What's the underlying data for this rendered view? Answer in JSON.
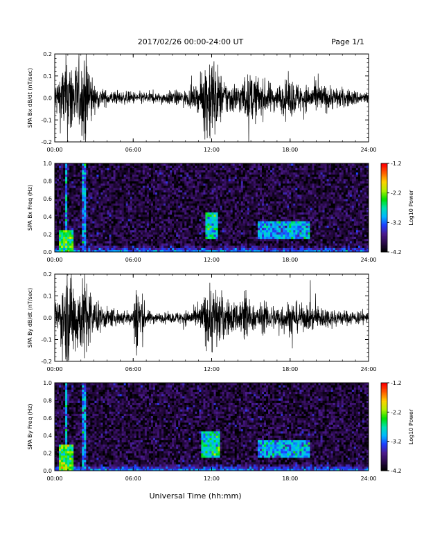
{
  "header": {
    "title": "2017/02/26  00:00-24:00 UT",
    "page": "Page 1/1"
  },
  "footer": {
    "xlabel": "Universal Time (hh:mm)"
  },
  "colors": {
    "trace": "#000000",
    "background": "#ffffff",
    "colormap": [
      "#000000",
      "#2a0a4a",
      "#4b1a8c",
      "#1f3cff",
      "#00b7ff",
      "#00e0b0",
      "#00e000",
      "#b0f000",
      "#ffd000",
      "#ff6000",
      "#ff0000"
    ]
  },
  "chart_data": [
    {
      "type": "line",
      "id": "bx-dbdt",
      "ylabel": "SPA Bx dB/dt (nT/sec)",
      "xlim": [
        0,
        24
      ],
      "ylim": [
        -0.2,
        0.2
      ],
      "xticks": [
        "00:00",
        "06:00",
        "12:00",
        "18:00",
        "24:00"
      ],
      "yticks": [
        "-0.2",
        "-0.1",
        "0.0",
        "0.1",
        "0.2"
      ],
      "series": [
        {
          "x": [
            0,
            1,
            2,
            2.3,
            2.5,
            3,
            4,
            5,
            6,
            7,
            8,
            9,
            10,
            11,
            11.5,
            12,
            12.5,
            13,
            14,
            15,
            16,
            17,
            18,
            19,
            20,
            21,
            22,
            23,
            24
          ],
          "amplitude": [
            0.06,
            0.18,
            0.12,
            0.2,
            0.2,
            0.05,
            0.03,
            0.025,
            0.025,
            0.025,
            0.02,
            0.03,
            0.03,
            0.05,
            0.15,
            0.2,
            0.12,
            0.07,
            0.06,
            0.1,
            0.07,
            0.05,
            0.08,
            0.05,
            0.06,
            0.05,
            0.04,
            0.03,
            0.025
          ]
        }
      ]
    },
    {
      "type": "heatmap",
      "id": "bx-spectrogram",
      "ylabel": "SPA Bx Freq (Hz)",
      "xlim": [
        0,
        24
      ],
      "ylim": [
        0,
        1
      ],
      "xticks": [
        "00:00",
        "06:00",
        "12:00",
        "18:00",
        "24:00"
      ],
      "yticks": [
        "0.0",
        "0.2",
        "0.4",
        "0.6",
        "0.8",
        "1.0"
      ],
      "colorbar": {
        "label": "Log10 Power",
        "ticks": [
          "-1.2",
          "-2.2",
          "-3.2",
          "-4.2"
        ],
        "range": [
          -4.2,
          -1.2
        ]
      },
      "features": [
        {
          "x": [
            11.5,
            12.5
          ],
          "y": [
            0.15,
            0.45
          ],
          "level": -2.8
        },
        {
          "x": [
            15.5,
            19.5
          ],
          "y": [
            0.15,
            0.35
          ],
          "level": -3.0
        },
        {
          "x": [
            0.3,
            1.5
          ],
          "y": [
            0,
            0.25
          ],
          "level": -2.5
        },
        {
          "x": [
            0.8,
            1.0
          ],
          "y": [
            0,
            1
          ],
          "level": -2.9
        },
        {
          "x": [
            2.1,
            2.4
          ],
          "y": [
            0,
            1
          ],
          "level": -3.1
        }
      ]
    },
    {
      "type": "line",
      "id": "by-dbdt",
      "ylabel": "SPA By dB/dt (nT/sec)",
      "xlim": [
        0,
        24
      ],
      "ylim": [
        -0.2,
        0.2
      ],
      "xticks": [
        "00:00",
        "06:00",
        "12:00",
        "18:00",
        "24:00"
      ],
      "yticks": [
        "-0.2",
        "-0.1",
        "0.0",
        "0.1",
        "0.2"
      ],
      "series": [
        {
          "x": [
            0,
            1,
            2,
            2.3,
            2.5,
            3,
            4,
            5,
            6,
            6.2,
            7,
            8,
            9,
            10,
            11,
            11.5,
            12,
            12.5,
            13,
            14,
            14.5,
            15,
            16,
            17,
            18,
            19,
            20,
            21,
            22,
            23,
            24
          ],
          "amplitude": [
            0.05,
            0.2,
            0.14,
            0.2,
            0.16,
            0.07,
            0.04,
            0.03,
            0.03,
            0.2,
            0.03,
            0.02,
            0.02,
            0.03,
            0.04,
            0.1,
            0.15,
            0.12,
            0.08,
            0.06,
            0.15,
            0.05,
            0.06,
            0.05,
            0.07,
            0.05,
            0.05,
            0.04,
            0.03,
            0.03,
            0.02
          ]
        }
      ]
    },
    {
      "type": "heatmap",
      "id": "by-spectrogram",
      "ylabel": "SPA By Freq (Hz)",
      "xlim": [
        0,
        24
      ],
      "ylim": [
        0,
        1
      ],
      "xticks": [
        "00:00",
        "06:00",
        "12:00",
        "18:00",
        "24:00"
      ],
      "yticks": [
        "0.0",
        "0.2",
        "0.4",
        "0.6",
        "0.8",
        "1.0"
      ],
      "colorbar": {
        "label": "Log10 Power",
        "ticks": [
          "-1.2",
          "-2.2",
          "-3.2",
          "-4.2"
        ],
        "range": [
          -4.2,
          -1.2
        ]
      },
      "features": [
        {
          "x": [
            11.2,
            12.6
          ],
          "y": [
            0.15,
            0.45
          ],
          "level": -2.7
        },
        {
          "x": [
            15.5,
            19.5
          ],
          "y": [
            0.15,
            0.35
          ],
          "level": -3.0
        },
        {
          "x": [
            0.3,
            1.5
          ],
          "y": [
            0,
            0.3
          ],
          "level": -2.4
        },
        {
          "x": [
            0.8,
            1.0
          ],
          "y": [
            0,
            1
          ],
          "level": -2.9
        },
        {
          "x": [
            2.1,
            2.4
          ],
          "y": [
            0,
            1
          ],
          "level": -3.1
        }
      ]
    }
  ]
}
